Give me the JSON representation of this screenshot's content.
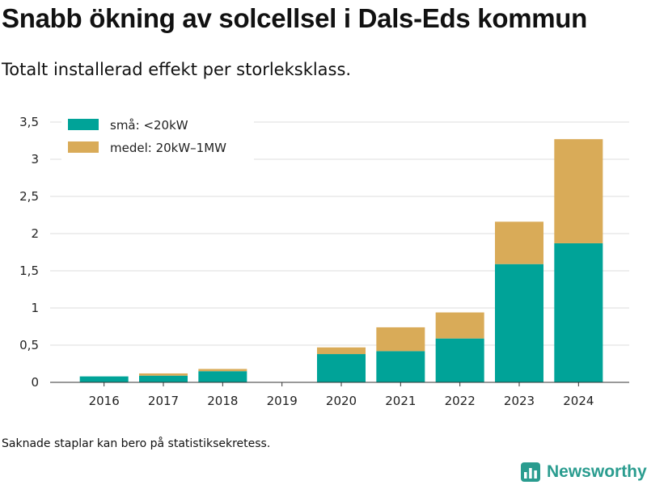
{
  "header": {
    "title": "Snabb ökning av solcellsel i Dals-Eds kommun",
    "subtitle": "Totalt installerad effekt per storleksklass."
  },
  "footer": {
    "note": "Saknade staplar kan bero på statistiksekretess.",
    "brand_name": "Newsworthy",
    "brand_icon": "bar-chart-logo-icon",
    "brand_color": "#2a9c8f"
  },
  "chart_data": {
    "type": "bar",
    "stacked": true,
    "title": "Snabb ökning av solcellsel i Dals-Eds kommun",
    "subtitle": "Totalt installerad effekt per storleksklass.",
    "categories": [
      "2016",
      "2017",
      "2018",
      "2019",
      "2020",
      "2021",
      "2022",
      "2023",
      "2024"
    ],
    "series": [
      {
        "name": "små: <20kW",
        "color": "#00a398",
        "values": [
          0.08,
          0.09,
          0.15,
          null,
          0.38,
          0.42,
          0.59,
          1.59,
          1.87
        ]
      },
      {
        "name": "medel: 20kW–1MW",
        "color": "#d9ab58",
        "values": [
          0.0,
          0.03,
          0.03,
          null,
          0.09,
          0.32,
          0.35,
          0.57,
          1.4
        ]
      }
    ],
    "ylim": [
      0,
      3.5
    ],
    "yticks": [
      0,
      0.5,
      1,
      1.5,
      2,
      2.5,
      3,
      3.5
    ],
    "ytick_labels": [
      "0",
      "0,5",
      "1",
      "1,5",
      "2",
      "2,5",
      "3",
      "3,5"
    ],
    "xlabel": "",
    "ylabel": "",
    "grid": true,
    "legend_position": "top-left"
  }
}
